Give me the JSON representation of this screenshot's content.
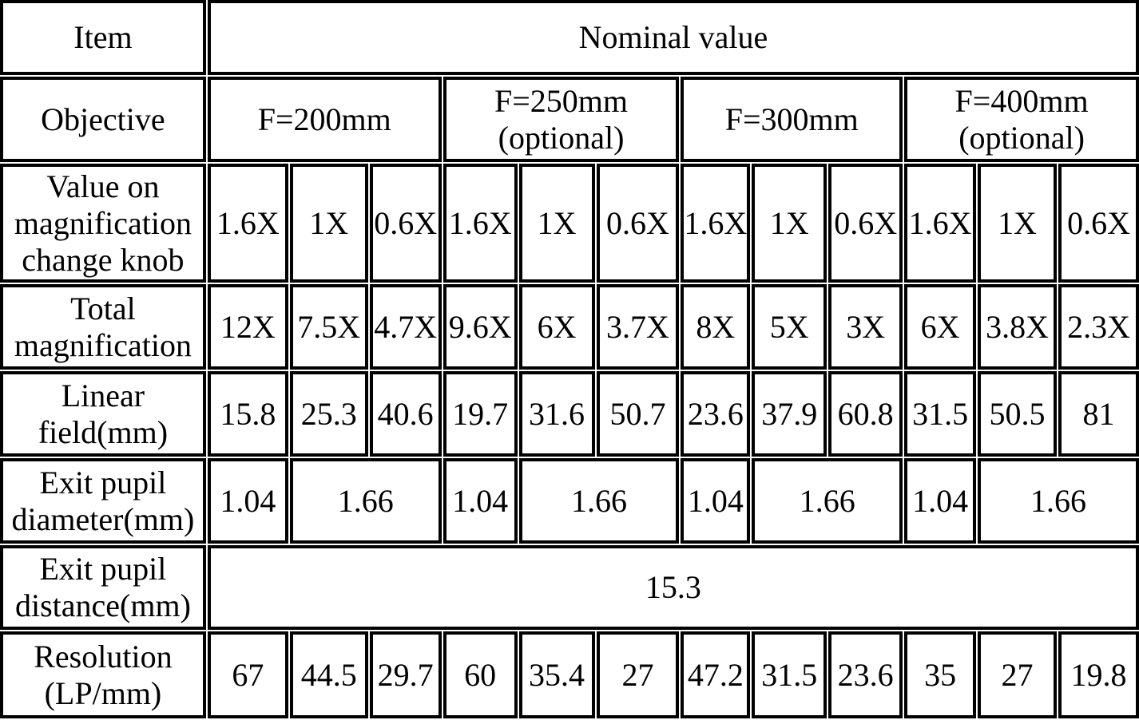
{
  "table": {
    "header": {
      "item_label": "Item",
      "nominal_value_label": "Nominal value",
      "objective_label": "Objective",
      "objective_groups": [
        {
          "label": "F=200mm"
        },
        {
          "label": "F=250mm\n(optional)"
        },
        {
          "label": "F=300mm"
        },
        {
          "label": "F=400mm\n(optional)"
        }
      ]
    },
    "rows": [
      {
        "label": "Value on\nmagnification\nchange knob",
        "cells": [
          "1.6X",
          "1X",
          "0.6X",
          "1.6X",
          "1X",
          "0.6X",
          "1.6X",
          "1X",
          "0.6X",
          "1.6X",
          "1X",
          "0.6X"
        ]
      },
      {
        "label": "Total\nmagnification",
        "cells": [
          "12X",
          "7.5X",
          "4.7X",
          "9.6X",
          "6X",
          "3.7X",
          "8X",
          "5X",
          "3X",
          "6X",
          "3.8X",
          "2.3X"
        ]
      },
      {
        "label": "Linear\nfield(mm)",
        "cells": [
          "15.8",
          "25.3",
          "40.6",
          "19.7",
          "31.6",
          "50.7",
          "23.6",
          "37.9",
          "60.8",
          "31.5",
          "50.5",
          "81"
        ]
      },
      {
        "label": "Exit pupil\ndiameter(mm)",
        "cells": [
          {
            "text": "1.04",
            "span": 1
          },
          {
            "text": "1.66",
            "span": 2
          },
          {
            "text": "1.04",
            "span": 1
          },
          {
            "text": "1.66",
            "span": 2
          },
          {
            "text": "1.04",
            "span": 1
          },
          {
            "text": "1.66",
            "span": 2
          },
          {
            "text": "1.04",
            "span": 1
          },
          {
            "text": "1.66",
            "span": 2
          }
        ]
      },
      {
        "label": "Exit pupil\ndistance(mm)",
        "cells": [
          {
            "text": "15.3",
            "span": 12
          }
        ]
      },
      {
        "label": "Resolution\n(LP/mm)",
        "cells": [
          "67",
          "44.5",
          "29.7",
          "60",
          "35.4",
          "27",
          "47.2",
          "31.5",
          "23.6",
          "35",
          "27",
          "19.8"
        ]
      }
    ]
  }
}
